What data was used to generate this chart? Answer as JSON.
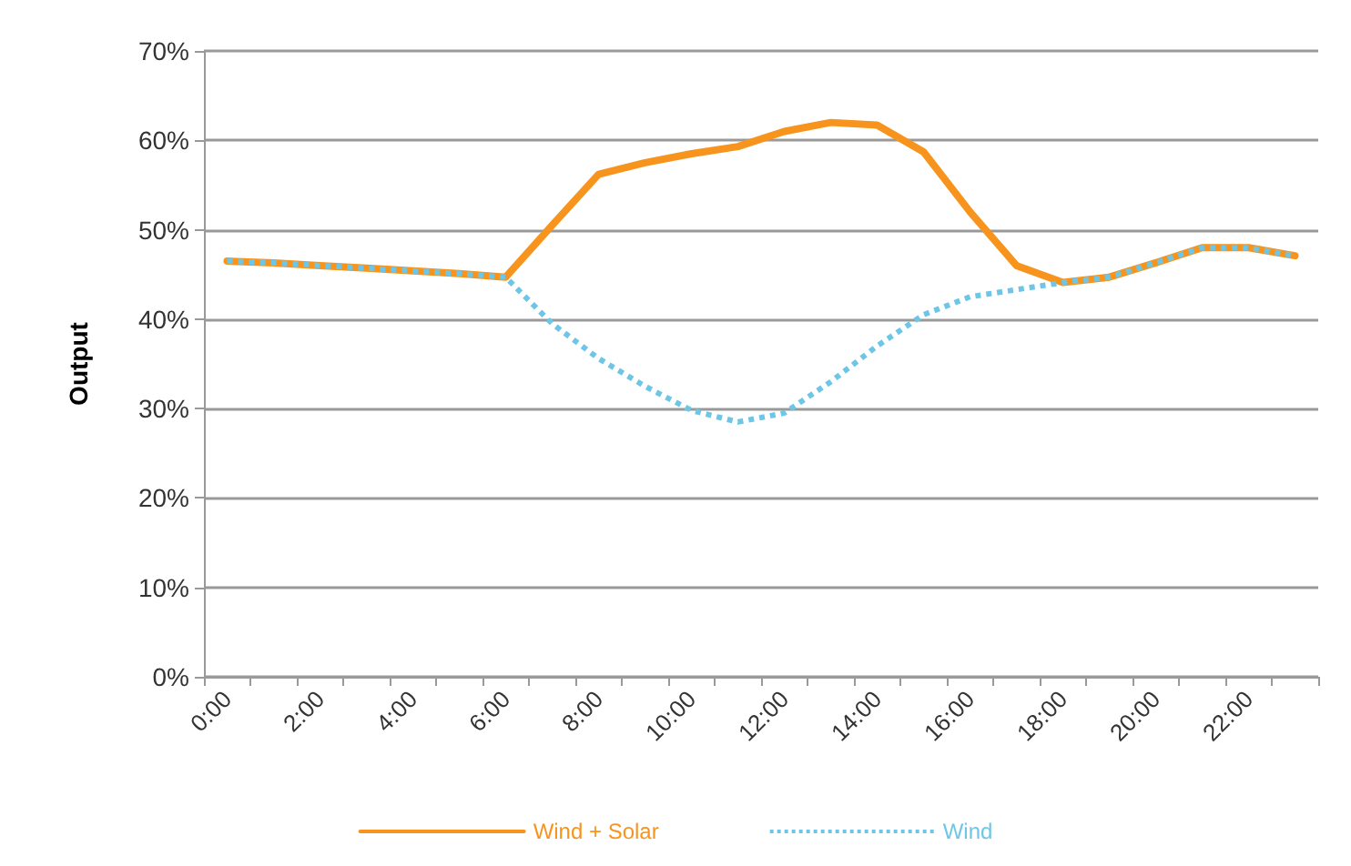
{
  "chart_data": {
    "type": "line",
    "ylabel": "Output",
    "categories": [
      "0:00",
      null,
      "2:00",
      null,
      "4:00",
      null,
      "6:00",
      null,
      "8:00",
      null,
      "10:00",
      null,
      "12:00",
      null,
      "14:00",
      null,
      "16:00",
      null,
      "18:00",
      null,
      "20:00",
      null,
      "22:00",
      null
    ],
    "series": [
      {
        "name": "Wind + Solar",
        "color": "#f7941d",
        "line_style": "solid",
        "values": [
          46.5,
          46.3,
          46,
          45.7,
          45.4,
          45.1,
          44.7,
          50.5,
          56.2,
          57.5,
          58.5,
          59.3,
          61,
          62,
          61.7,
          58.7,
          52,
          46,
          44.1,
          44.7,
          46.3,
          48,
          48,
          47.1
        ]
      },
      {
        "name": "Wind",
        "color": "#6ec6e6",
        "line_style": "dotted",
        "values": [
          46.5,
          46.3,
          46,
          45.7,
          45.4,
          45.1,
          44.7,
          39.5,
          35.6,
          32.5,
          29.8,
          28.5,
          29.5,
          33,
          37,
          40.5,
          42.5,
          43.3,
          44.1,
          44.7,
          46.3,
          48,
          48,
          47.1
        ]
      }
    ],
    "ylim": [
      0,
      70
    ],
    "yticks": [
      {
        "value": 0,
        "label": "0%"
      },
      {
        "value": 10,
        "label": "10%"
      },
      {
        "value": 20,
        "label": "20%"
      },
      {
        "value": 30,
        "label": "30%"
      },
      {
        "value": 40,
        "label": "40%"
      },
      {
        "value": 50,
        "label": "50%"
      },
      {
        "value": 60,
        "label": "60%"
      },
      {
        "value": 70,
        "label": "70%"
      }
    ],
    "grid": "y",
    "legend": "bottom",
    "marker": "none"
  }
}
